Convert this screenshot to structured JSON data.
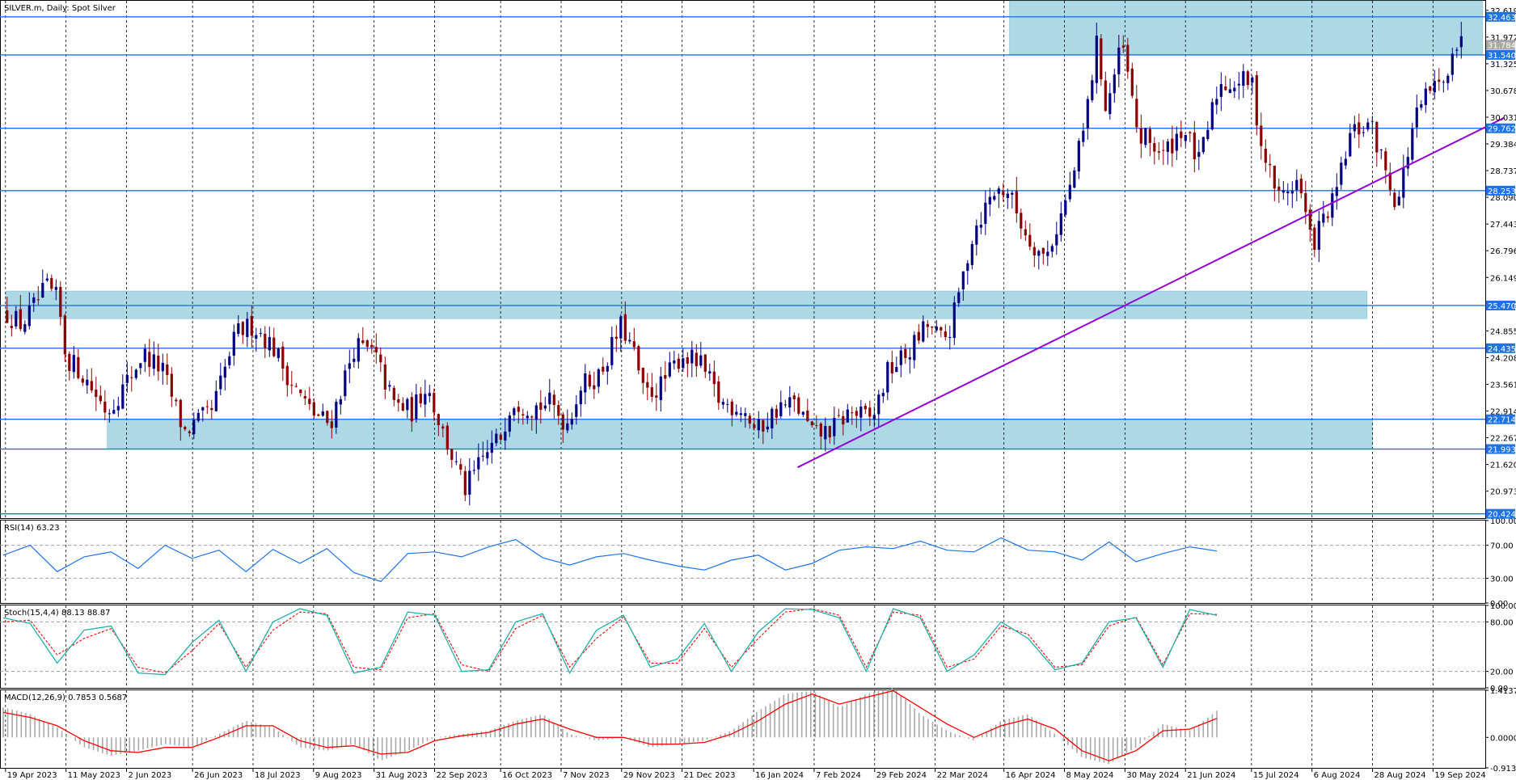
{
  "window": {
    "main_title": "SILVER.m, Daily:  Spot Silver",
    "rsi_title": "RSI(14) 63.23",
    "stoch_title": "Stoch(15,4,4) 88.13 88.87",
    "macd_title": "MACD(12,26,9) 0.7853 0.5687"
  },
  "colors": {
    "level_line": "#1e73e6",
    "zone_fill": "#add8e6",
    "trendline": "#9400d3",
    "bull_candle": "#000080",
    "bear_candle": "#8b0000",
    "rsi_line": "#1e73e6",
    "stoch_main": "#20b2aa",
    "stoch_signal": "#ff0000",
    "macd_hist": "#a9a9a9",
    "macd_signal": "#ff0000",
    "price_tag": "#1e73e6",
    "current_price_tag": "#a9a9a9"
  },
  "chart_data": [
    {
      "type": "candlestick",
      "title": "SILVER.m, Daily:  Spot Silver",
      "ylim": [
        20.32,
        32.85
      ],
      "y_ticks": [
        "32.619",
        "31.972",
        "31.325",
        "30.678",
        "30.031",
        "29.384",
        "28.737",
        "28.090",
        "27.443",
        "26.796",
        "26.149",
        "25.502",
        "24.855",
        "24.208",
        "23.561",
        "22.914",
        "22.267",
        "21.620",
        "20.973"
      ],
      "x_ticks": [
        "19 Apr 2023",
        "11 May 2023",
        "2 Jun 2023",
        "26 Jun 2023",
        "18 Jul 2023",
        "9 Aug 2023",
        "31 Aug 2023",
        "22 Sep 2023",
        "16 Oct 2023",
        "7 Nov 2023",
        "29 Nov 2023",
        "21 Dec 2023",
        "16 Jan 2024",
        "7 Feb 2024",
        "29 Feb 2024",
        "22 Mar 2024",
        "16 Apr 2024",
        "8 May 2024",
        "30 May 2024",
        "21 Jun 2024",
        "15 Jul 2024",
        "6 Aug 2024",
        "28 Aug 2024",
        "19 Sep 2024"
      ],
      "horizontal_levels": [
        {
          "value": 32.463,
          "label": "32.463"
        },
        {
          "value": 31.54,
          "label": "31.540"
        },
        {
          "value": 29.762,
          "label": "29.762"
        },
        {
          "value": 28.253,
          "label": "28.253"
        },
        {
          "value": 25.47,
          "label": "25.470"
        },
        {
          "value": 24.435,
          "label": "24.435"
        },
        {
          "value": 22.714,
          "label": "22.714"
        },
        {
          "value": 21.993,
          "label": "21.993"
        },
        {
          "value": 20.424,
          "label": "20.424"
        }
      ],
      "current_price": {
        "value": 31.784,
        "label": "31.784"
      },
      "zones": [
        {
          "from_date": "2024-04-18",
          "to_date": "2024-10-07",
          "low": 31.55,
          "high": 33.2
        },
        {
          "from_date": "2023-04-19",
          "to_date": "2024-08-26",
          "low": 25.15,
          "high": 25.82
        },
        {
          "from_date": "2023-05-26",
          "to_date": "2024-08-28",
          "low": 21.99,
          "high": 22.72
        }
      ],
      "trendline": {
        "from": {
          "date": "2024-02-01",
          "value": 21.55
        },
        "to": {
          "date": "2024-10-15",
          "value": 30.02
        }
      },
      "key_points": [
        {
          "date": "2023-04-19",
          "close": 25.3
        },
        {
          "date": "2023-04-25",
          "close": 25.0
        },
        {
          "date": "2023-05-04",
          "close": 25.9
        },
        {
          "date": "2023-05-08",
          "close": 25.6
        },
        {
          "date": "2023-05-11",
          "close": 24.2
        },
        {
          "date": "2023-05-16",
          "close": 23.9
        },
        {
          "date": "2023-05-26",
          "close": 22.9
        },
        {
          "date": "2023-06-02",
          "close": 23.6
        },
        {
          "date": "2023-06-08",
          "close": 24.3
        },
        {
          "date": "2023-06-15",
          "close": 23.9
        },
        {
          "date": "2023-06-23",
          "close": 22.4
        },
        {
          "date": "2023-07-03",
          "close": 22.9
        },
        {
          "date": "2023-07-12",
          "close": 24.8
        },
        {
          "date": "2023-07-18",
          "close": 25.0
        },
        {
          "date": "2023-07-25",
          "close": 24.5
        },
        {
          "date": "2023-08-01",
          "close": 23.6
        },
        {
          "date": "2023-08-08",
          "close": 22.9
        },
        {
          "date": "2023-08-15",
          "close": 22.6
        },
        {
          "date": "2023-08-24",
          "close": 24.5
        },
        {
          "date": "2023-08-31",
          "close": 24.3
        },
        {
          "date": "2023-09-07",
          "close": 23.1
        },
        {
          "date": "2023-09-14",
          "close": 22.9
        },
        {
          "date": "2023-09-19",
          "close": 23.6
        },
        {
          "date": "2023-09-25",
          "close": 22.4
        },
        {
          "date": "2023-10-03",
          "close": 21.0
        },
        {
          "date": "2023-10-10",
          "close": 21.8
        },
        {
          "date": "2023-10-16",
          "close": 22.3
        },
        {
          "date": "2023-10-20",
          "close": 23.2
        },
        {
          "date": "2023-10-27",
          "close": 23.0
        },
        {
          "date": "2023-11-03",
          "close": 23.1
        },
        {
          "date": "2023-11-09",
          "close": 22.6
        },
        {
          "date": "2023-11-14",
          "close": 23.5
        },
        {
          "date": "2023-11-21",
          "close": 23.8
        },
        {
          "date": "2023-11-29",
          "close": 25.0
        },
        {
          "date": "2023-12-04",
          "close": 24.2
        },
        {
          "date": "2023-12-07",
          "close": 23.3
        },
        {
          "date": "2023-12-13",
          "close": 23.5
        },
        {
          "date": "2023-12-21",
          "close": 24.3
        },
        {
          "date": "2023-12-28",
          "close": 24.0
        },
        {
          "date": "2024-01-04",
          "close": 23.1
        },
        {
          "date": "2024-01-12",
          "close": 23.0
        },
        {
          "date": "2024-01-17",
          "close": 22.4
        },
        {
          "date": "2024-01-25",
          "close": 23.0
        },
        {
          "date": "2024-01-31",
          "close": 23.1
        },
        {
          "date": "2024-02-07",
          "close": 22.3
        },
        {
          "date": "2024-02-14",
          "close": 22.5
        },
        {
          "date": "2024-02-20",
          "close": 22.9
        },
        {
          "date": "2024-02-28",
          "close": 22.7
        },
        {
          "date": "2024-03-05",
          "close": 23.9
        },
        {
          "date": "2024-03-12",
          "close": 24.3
        },
        {
          "date": "2024-03-19",
          "close": 25.0
        },
        {
          "date": "2024-03-25",
          "close": 24.6
        },
        {
          "date": "2024-03-28",
          "close": 25.0
        },
        {
          "date": "2024-04-05",
          "close": 27.3
        },
        {
          "date": "2024-04-12",
          "close": 28.2
        },
        {
          "date": "2024-04-17",
          "close": 28.3
        },
        {
          "date": "2024-04-24",
          "close": 27.2
        },
        {
          "date": "2024-05-01",
          "close": 26.6
        },
        {
          "date": "2024-05-06",
          "close": 27.5
        },
        {
          "date": "2024-05-10",
          "close": 28.3
        },
        {
          "date": "2024-05-15",
          "close": 29.7
        },
        {
          "date": "2024-05-20",
          "close": 31.9
        },
        {
          "date": "2024-05-23",
          "close": 30.2
        },
        {
          "date": "2024-05-29",
          "close": 31.8
        },
        {
          "date": "2024-06-04",
          "close": 29.5
        },
        {
          "date": "2024-06-07",
          "close": 29.5
        },
        {
          "date": "2024-06-13",
          "close": 29.1
        },
        {
          "date": "2024-06-20",
          "close": 29.8
        },
        {
          "date": "2024-06-26",
          "close": 28.9
        },
        {
          "date": "2024-07-03",
          "close": 30.8
        },
        {
          "date": "2024-07-10",
          "close": 30.9
        },
        {
          "date": "2024-07-15",
          "close": 30.9
        },
        {
          "date": "2024-07-19",
          "close": 29.2
        },
        {
          "date": "2024-07-25",
          "close": 28.1
        },
        {
          "date": "2024-08-01",
          "close": 28.5
        },
        {
          "date": "2024-08-06",
          "close": 26.9
        },
        {
          "date": "2024-08-09",
          "close": 27.4
        },
        {
          "date": "2024-08-14",
          "close": 28.0
        },
        {
          "date": "2024-08-20",
          "close": 29.6
        },
        {
          "date": "2024-08-27",
          "close": 29.9
        },
        {
          "date": "2024-09-03",
          "close": 28.5
        },
        {
          "date": "2024-09-06",
          "close": 27.9
        },
        {
          "date": "2024-09-12",
          "close": 29.9
        },
        {
          "date": "2024-09-18",
          "close": 30.7
        },
        {
          "date": "2024-09-23",
          "close": 30.8
        },
        {
          "date": "2024-09-26",
          "close": 31.8
        },
        {
          "date": "2024-09-30",
          "close": 31.8
        }
      ]
    },
    {
      "type": "line",
      "title": "RSI(14) 63.23",
      "ylim": [
        0,
        100
      ],
      "y_ticks": [
        "100.00",
        "70.00",
        "30.00",
        "0.00"
      ],
      "levels": [
        70,
        30
      ],
      "series": [
        {
          "name": "RSI(14)",
          "values": [
            58,
            70,
            38,
            56,
            62,
            42,
            70,
            54,
            64,
            38,
            65,
            48,
            66,
            37,
            26,
            60,
            62,
            56,
            68,
            77,
            55,
            46,
            56,
            60,
            52,
            45,
            40,
            52,
            58,
            40,
            48,
            64,
            68,
            66,
            75,
            64,
            62,
            79,
            64,
            62,
            52,
            74,
            50,
            60,
            68,
            63
          ]
        }
      ]
    },
    {
      "type": "line",
      "title": "Stoch(15,4,4) 88.13 88.87",
      "ylim": [
        0,
        100
      ],
      "y_ticks": [
        "100.00",
        "80.00",
        "20.00",
        "0.00"
      ],
      "levels": [
        80,
        20
      ],
      "series": [
        {
          "name": "Main",
          "values": [
            85,
            78,
            30,
            70,
            75,
            18,
            16,
            55,
            82,
            20,
            80,
            96,
            88,
            18,
            25,
            92,
            88,
            20,
            22,
            80,
            90,
            18,
            70,
            88,
            25,
            35,
            78,
            20,
            68,
            96,
            95,
            85,
            20,
            96,
            85,
            20,
            40,
            80,
            60,
            22,
            30,
            80,
            85,
            25,
            95,
            88
          ]
        },
        {
          "name": "Signal",
          "values": [
            80,
            82,
            40,
            60,
            72,
            25,
            18,
            45,
            78,
            25,
            70,
            92,
            90,
            25,
            22,
            85,
            90,
            28,
            20,
            72,
            88,
            25,
            60,
            86,
            30,
            30,
            72,
            25,
            60,
            92,
            96,
            88,
            25,
            92,
            88,
            25,
            35,
            75,
            65,
            25,
            28,
            75,
            86,
            28,
            90,
            89
          ]
        }
      ]
    },
    {
      "type": "bar",
      "title": "MACD(12,26,9) 0.7853 0.5687",
      "ylim": [
        -0.9136,
        1.4137
      ],
      "y_ticks": [
        "1.4137",
        "0.0000",
        "-0.9136"
      ],
      "series": [
        {
          "name": "MACD",
          "values": [
            0.9,
            0.7,
            0.3,
            -0.3,
            -0.55,
            -0.4,
            -0.2,
            -0.3,
            0.1,
            0.5,
            0.3,
            -0.3,
            -0.4,
            -0.2,
            -0.7,
            -0.4,
            0.0,
            0.1,
            0.2,
            0.5,
            0.7,
            0.1,
            -0.1,
            0.0,
            -0.3,
            -0.2,
            -0.1,
            0.2,
            0.8,
            1.3,
            1.4,
            0.9,
            1.3,
            1.5,
            0.7,
            0.2,
            -0.1,
            0.5,
            0.7,
            0.1,
            -0.6,
            -0.8,
            -0.3,
            0.4,
            0.2,
            0.8
          ]
        },
        {
          "name": "Signal",
          "values": [
            0.75,
            0.6,
            0.35,
            -0.1,
            -0.4,
            -0.45,
            -0.3,
            -0.3,
            0.0,
            0.35,
            0.35,
            -0.1,
            -0.3,
            -0.25,
            -0.5,
            -0.45,
            -0.1,
            0.05,
            0.15,
            0.4,
            0.55,
            0.25,
            0.0,
            0.0,
            -0.2,
            -0.2,
            -0.15,
            0.1,
            0.5,
            1.0,
            1.3,
            1.0,
            1.2,
            1.4,
            0.9,
            0.4,
            0.0,
            0.35,
            0.55,
            0.25,
            -0.4,
            -0.7,
            -0.4,
            0.2,
            0.25,
            0.57
          ]
        }
      ]
    }
  ]
}
